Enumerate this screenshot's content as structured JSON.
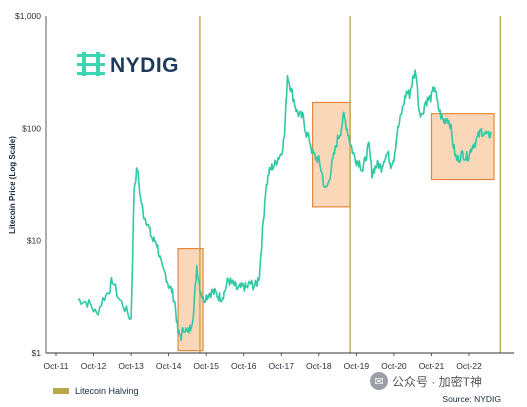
{
  "logo": {
    "text": "NYDIG",
    "icon": "nydig-logo-icon"
  },
  "legend": {
    "label": "Litecoin Halving",
    "color": "#b9a74b"
  },
  "source": "Source: NYDIG",
  "watermark": {
    "text": "公众号 · 加密T神",
    "icon": "wechat-icon"
  },
  "colors": {
    "line": "#2fc9a4",
    "halving": "#b9a74b",
    "box_fill": "#f8c9a0",
    "box_stroke": "#e6873a",
    "axis": "#333333"
  },
  "chart_data": {
    "type": "line",
    "title": "",
    "xlabel": "",
    "ylabel": "Litecoin Price (Log Scale)",
    "yscale": "log",
    "ylim": [
      1,
      1000
    ],
    "y_ticks": [
      1,
      10,
      100,
      1000
    ],
    "y_tick_labels": [
      "$1",
      "$10",
      "$100",
      "$1,000"
    ],
    "xlim": [
      "2011-10",
      "2023-06"
    ],
    "x_tick_labels": [
      "Oct-11",
      "Oct-12",
      "Oct-13",
      "Oct-14",
      "Oct-15",
      "Oct-16",
      "Oct-17",
      "Oct-18",
      "Oct-19",
      "Oct-20",
      "Oct-21",
      "Oct-22"
    ],
    "x_tick_dates": [
      "2011-10",
      "2012-10",
      "2013-10",
      "2014-10",
      "2015-10",
      "2016-10",
      "2017-10",
      "2018-10",
      "2019-10",
      "2020-10",
      "2021-10",
      "2022-10"
    ],
    "series": [
      {
        "values_by_month": [
          [
            "2012-05",
            3.0
          ],
          [
            "2012-07",
            2.9
          ],
          [
            "2012-09",
            2.7
          ],
          [
            "2012-11",
            2.2
          ],
          [
            "2013-01",
            3.0
          ],
          [
            "2013-03",
            3.6
          ],
          [
            "2013-04",
            4.5
          ],
          [
            "2013-06",
            3.1
          ],
          [
            "2013-08",
            2.5
          ],
          [
            "2013-10",
            2.0
          ],
          [
            "2013-11",
            30
          ],
          [
            "2013-12",
            45
          ],
          [
            "2014-01",
            24
          ],
          [
            "2014-02",
            17
          ],
          [
            "2014-03",
            15
          ],
          [
            "2014-04",
            12
          ],
          [
            "2014-05",
            10
          ],
          [
            "2014-06",
            10
          ],
          [
            "2014-07",
            7.5
          ],
          [
            "2014-08",
            5.5
          ],
          [
            "2014-09",
            5.0
          ],
          [
            "2014-10",
            4.0
          ],
          [
            "2014-11",
            3.6
          ],
          [
            "2014-12",
            2.8
          ],
          [
            "2015-01",
            1.5
          ],
          [
            "2015-02",
            1.4
          ],
          [
            "2015-03",
            1.7
          ],
          [
            "2015-04",
            1.5
          ],
          [
            "2015-05",
            1.7
          ],
          [
            "2015-06",
            2.3
          ],
          [
            "2015-07",
            6.0
          ],
          [
            "2015-08",
            3.8
          ],
          [
            "2015-09",
            3.0
          ],
          [
            "2015-10",
            3.2
          ],
          [
            "2015-11",
            3.4
          ],
          [
            "2015-12",
            3.5
          ],
          [
            "2016-01",
            3.4
          ],
          [
            "2016-02",
            3.2
          ],
          [
            "2016-03",
            3.1
          ],
          [
            "2016-04",
            3.6
          ],
          [
            "2016-05",
            4.5
          ],
          [
            "2016-06",
            4.2
          ],
          [
            "2016-07",
            4.0
          ],
          [
            "2016-08",
            3.7
          ],
          [
            "2016-09",
            3.8
          ],
          [
            "2016-10",
            3.9
          ],
          [
            "2016-11",
            3.8
          ],
          [
            "2016-12",
            4.2
          ],
          [
            "2017-01",
            4.0
          ],
          [
            "2017-02",
            4.0
          ],
          [
            "2017-03",
            5.0
          ],
          [
            "2017-04",
            12
          ],
          [
            "2017-05",
            28
          ],
          [
            "2017-06",
            40
          ],
          [
            "2017-07",
            45
          ],
          [
            "2017-08",
            48
          ],
          [
            "2017-09",
            55
          ],
          [
            "2017-10",
            60
          ],
          [
            "2017-11",
            85
          ],
          [
            "2017-12",
            300
          ],
          [
            "2018-01",
            230
          ],
          [
            "2018-02",
            180
          ],
          [
            "2018-03",
            140
          ],
          [
            "2018-04",
            130
          ],
          [
            "2018-05",
            125
          ],
          [
            "2018-06",
            90
          ],
          [
            "2018-07",
            80
          ],
          [
            "2018-08",
            60
          ],
          [
            "2018-09",
            55
          ],
          [
            "2018-10",
            52
          ],
          [
            "2018-11",
            40
          ],
          [
            "2018-12",
            28
          ],
          [
            "2019-01",
            32
          ],
          [
            "2019-02",
            45
          ],
          [
            "2019-03",
            60
          ],
          [
            "2019-04",
            80
          ],
          [
            "2019-05",
            95
          ],
          [
            "2019-06",
            130
          ],
          [
            "2019-07",
            100
          ],
          [
            "2019-08",
            75
          ],
          [
            "2019-09",
            60
          ],
          [
            "2019-10",
            52
          ],
          [
            "2019-11",
            50
          ],
          [
            "2019-12",
            42
          ],
          [
            "2020-01",
            55
          ],
          [
            "2020-02",
            70
          ],
          [
            "2020-03",
            40
          ],
          [
            "2020-04",
            45
          ],
          [
            "2020-05",
            48
          ],
          [
            "2020-06",
            45
          ],
          [
            "2020-07",
            55
          ],
          [
            "2020-08",
            60
          ],
          [
            "2020-09",
            48
          ],
          [
            "2020-10",
            55
          ],
          [
            "2020-11",
            90
          ],
          [
            "2020-12",
            120
          ],
          [
            "2021-01",
            160
          ],
          [
            "2021-02",
            210
          ],
          [
            "2021-03",
            200
          ],
          [
            "2021-04",
            270
          ],
          [
            "2021-05",
            330
          ],
          [
            "2021-06",
            150
          ],
          [
            "2021-07",
            130
          ],
          [
            "2021-08",
            170
          ],
          [
            "2021-09",
            180
          ],
          [
            "2021-10",
            190
          ],
          [
            "2021-11",
            240
          ],
          [
            "2021-12",
            160
          ],
          [
            "2022-01",
            130
          ],
          [
            "2022-02",
            115
          ],
          [
            "2022-03",
            125
          ],
          [
            "2022-04",
            110
          ],
          [
            "2022-05",
            70
          ],
          [
            "2022-06",
            52
          ],
          [
            "2022-07",
            55
          ],
          [
            "2022-08",
            60
          ],
          [
            "2022-09",
            55
          ],
          [
            "2022-10",
            58
          ],
          [
            "2022-11",
            70
          ],
          [
            "2022-12",
            75
          ],
          [
            "2023-01",
            85
          ],
          [
            "2023-02",
            95
          ],
          [
            "2023-03",
            90
          ],
          [
            "2023-04",
            85
          ],
          [
            "2023-05",
            90
          ]
        ]
      }
    ],
    "halvings": [
      "2015-08",
      "2019-08",
      "2023-08"
    ],
    "highlight_boxes": [
      {
        "x_start": "2015-01",
        "x_end": "2015-09",
        "y_low": 1.05,
        "y_high": 8.5
      },
      {
        "x_start": "2018-08",
        "x_end": "2019-08",
        "y_low": 20,
        "y_high": 170
      },
      {
        "x_start": "2021-10",
        "x_end": "2023-06",
        "y_low": 35,
        "y_high": 135
      }
    ],
    "grid": false,
    "legend_position": "bottom-left"
  }
}
